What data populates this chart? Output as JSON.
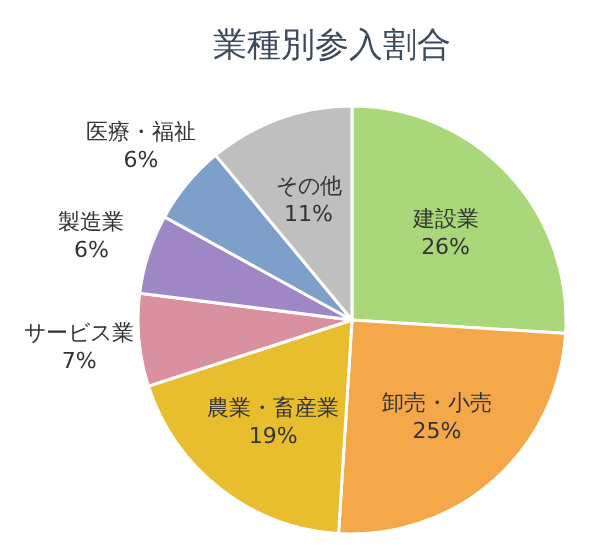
{
  "chart_data": {
    "type": "pie",
    "title": "業種別参入割合",
    "categories": [
      "建設業",
      "卸売・小売",
      "農業・畜産業",
      "サービス業",
      "製造業",
      "医療・福祉",
      "その他"
    ],
    "values": [
      26,
      25,
      19,
      7,
      6,
      6,
      11
    ],
    "colors": [
      "#a9d77a",
      "#f5a84a",
      "#e8bd2e",
      "#d9909f",
      "#9e87c4",
      "#7f9fcb",
      "#bfbfbf"
    ],
    "value_labels": [
      "26%",
      "25%",
      "19%",
      "7%",
      "6%",
      "6%",
      "11%"
    ]
  }
}
